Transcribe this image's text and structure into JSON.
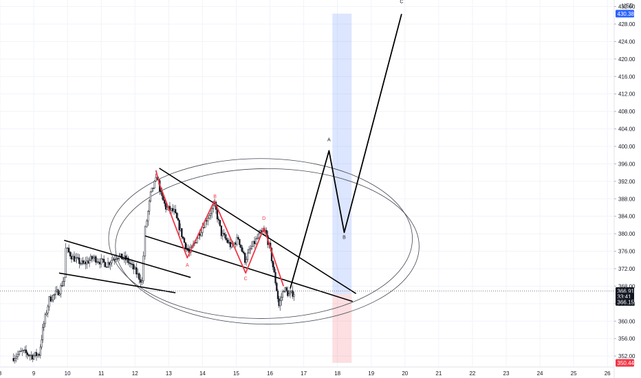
{
  "chart_data": {
    "type": "candlestick",
    "currency_label": "USD",
    "x_ticks": [
      "8",
      "9",
      "10",
      "11",
      "12",
      "13",
      "14",
      "15",
      "16",
      "17",
      "18",
      "19",
      "20",
      "21",
      "22",
      "23",
      "24",
      "25",
      "26"
    ],
    "y_ticks": [
      "352.00",
      "356.00",
      "360.00",
      "364.00",
      "368.00",
      "372.00",
      "376.00",
      "380.00",
      "384.00",
      "388.00",
      "392.00",
      "396.00",
      "400.00",
      "404.00",
      "408.00",
      "412.00",
      "416.00",
      "420.00",
      "424.00",
      "428.00",
      "432.00"
    ],
    "ylim": [
      349.5,
      433.5
    ],
    "xlim": [
      8,
      26.2
    ],
    "price_badges": [
      {
        "label": "430.38",
        "value": 430.38,
        "color": "#2962ff"
      },
      {
        "label": "366.91",
        "value": 366.91,
        "color": "#131722"
      },
      {
        "label": "33:41",
        "value": 365.65,
        "color": "#131722"
      },
      {
        "label": "366.15",
        "value": 364.4,
        "color": "#131722"
      },
      {
        "label": "350.44",
        "value": 350.44,
        "color": "#f23645"
      }
    ],
    "last_price": 366.91,
    "candle_anchors": [
      [
        8.4,
        351.5
      ],
      [
        8.7,
        353.0
      ],
      [
        9.0,
        352.0
      ],
      [
        9.2,
        352.5
      ],
      [
        9.3,
        358.0
      ],
      [
        9.5,
        365.0
      ],
      [
        9.8,
        367.0
      ],
      [
        9.95,
        370.0
      ],
      [
        10.0,
        376.5
      ],
      [
        10.2,
        374.5
      ],
      [
        10.5,
        373.0
      ],
      [
        10.8,
        374.5
      ],
      [
        11.2,
        373.0
      ],
      [
        11.5,
        375.0
      ],
      [
        11.8,
        374.0
      ],
      [
        12.0,
        372.0
      ],
      [
        12.25,
        369.0
      ],
      [
        12.35,
        381.0
      ],
      [
        12.5,
        389.0
      ],
      [
        12.7,
        393.0
      ],
      [
        12.8,
        389.0
      ],
      [
        12.95,
        386.0
      ],
      [
        13.2,
        385.0
      ],
      [
        13.5,
        378.0
      ],
      [
        13.65,
        375.5
      ],
      [
        14.0,
        381.0
      ],
      [
        14.2,
        384.0
      ],
      [
        14.4,
        386.5
      ],
      [
        14.6,
        380.0
      ],
      [
        14.9,
        377.0
      ],
      [
        15.1,
        379.0
      ],
      [
        15.3,
        374.0
      ],
      [
        15.5,
        377.0
      ],
      [
        15.75,
        380.0
      ],
      [
        15.9,
        380.5
      ],
      [
        16.05,
        376.0
      ],
      [
        16.2,
        369.0
      ],
      [
        16.3,
        363.5
      ],
      [
        16.45,
        367.5
      ],
      [
        16.6,
        366.0
      ],
      [
        16.75,
        366.5
      ]
    ],
    "annotations": {
      "wave_labels": [
        {
          "text": "A",
          "x": 13.55,
          "y": 372.5,
          "color": "#f23645"
        },
        {
          "text": "B",
          "x": 14.37,
          "y": 388.2,
          "color": "#f23645"
        },
        {
          "text": "C",
          "x": 15.28,
          "y": 369.4,
          "color": "#f23645"
        },
        {
          "text": "D",
          "x": 15.82,
          "y": 383.2,
          "color": "#f23645"
        },
        {
          "text": "A",
          "x": 17.75,
          "y": 401.2,
          "color": "#131722"
        },
        {
          "text": "B",
          "x": 18.2,
          "y": 378.8,
          "color": "#131722"
        },
        {
          "text": "C",
          "x": 19.9,
          "y": 432.8,
          "color": "#131722"
        }
      ],
      "red_wave_path": [
        [
          12.62,
          394.5
        ],
        [
          12.72,
          391.5
        ],
        [
          13.55,
          374.5
        ],
        [
          14.35,
          387.5
        ],
        [
          15.28,
          371.0
        ],
        [
          15.82,
          381.3
        ],
        [
          16.4,
          368.0
        ]
      ],
      "projection_path": [
        [
          16.6,
          367.5
        ],
        [
          17.75,
          399.0
        ],
        [
          18.2,
          380.3
        ],
        [
          19.9,
          430.3
        ]
      ],
      "trend_lines": [
        {
          "from": [
            12.72,
            395.0
          ],
          "to": [
            18.55,
            366.3
          ]
        },
        {
          "from": [
            12.3,
            379.5
          ],
          "to": [
            18.45,
            364.5
          ]
        },
        {
          "from": [
            9.9,
            378.5
          ],
          "to": [
            13.65,
            370.0
          ]
        },
        {
          "from": [
            9.75,
            371.0
          ],
          "to": [
            13.2,
            366.5
          ]
        }
      ],
      "ellipses": [
        {
          "cx": 15.72,
          "cy": 378.9,
          "rx": 4.5,
          "ry": 18.3
        },
        {
          "cx": 15.92,
          "cy": 377.1,
          "rx": 4.5,
          "ry": 17.8
        }
      ],
      "target_zone": {
        "x0": 17.85,
        "x1": 18.42,
        "y_top": 430.38,
        "y_entry": 366.15,
        "y_stop": 350.44
      }
    }
  }
}
